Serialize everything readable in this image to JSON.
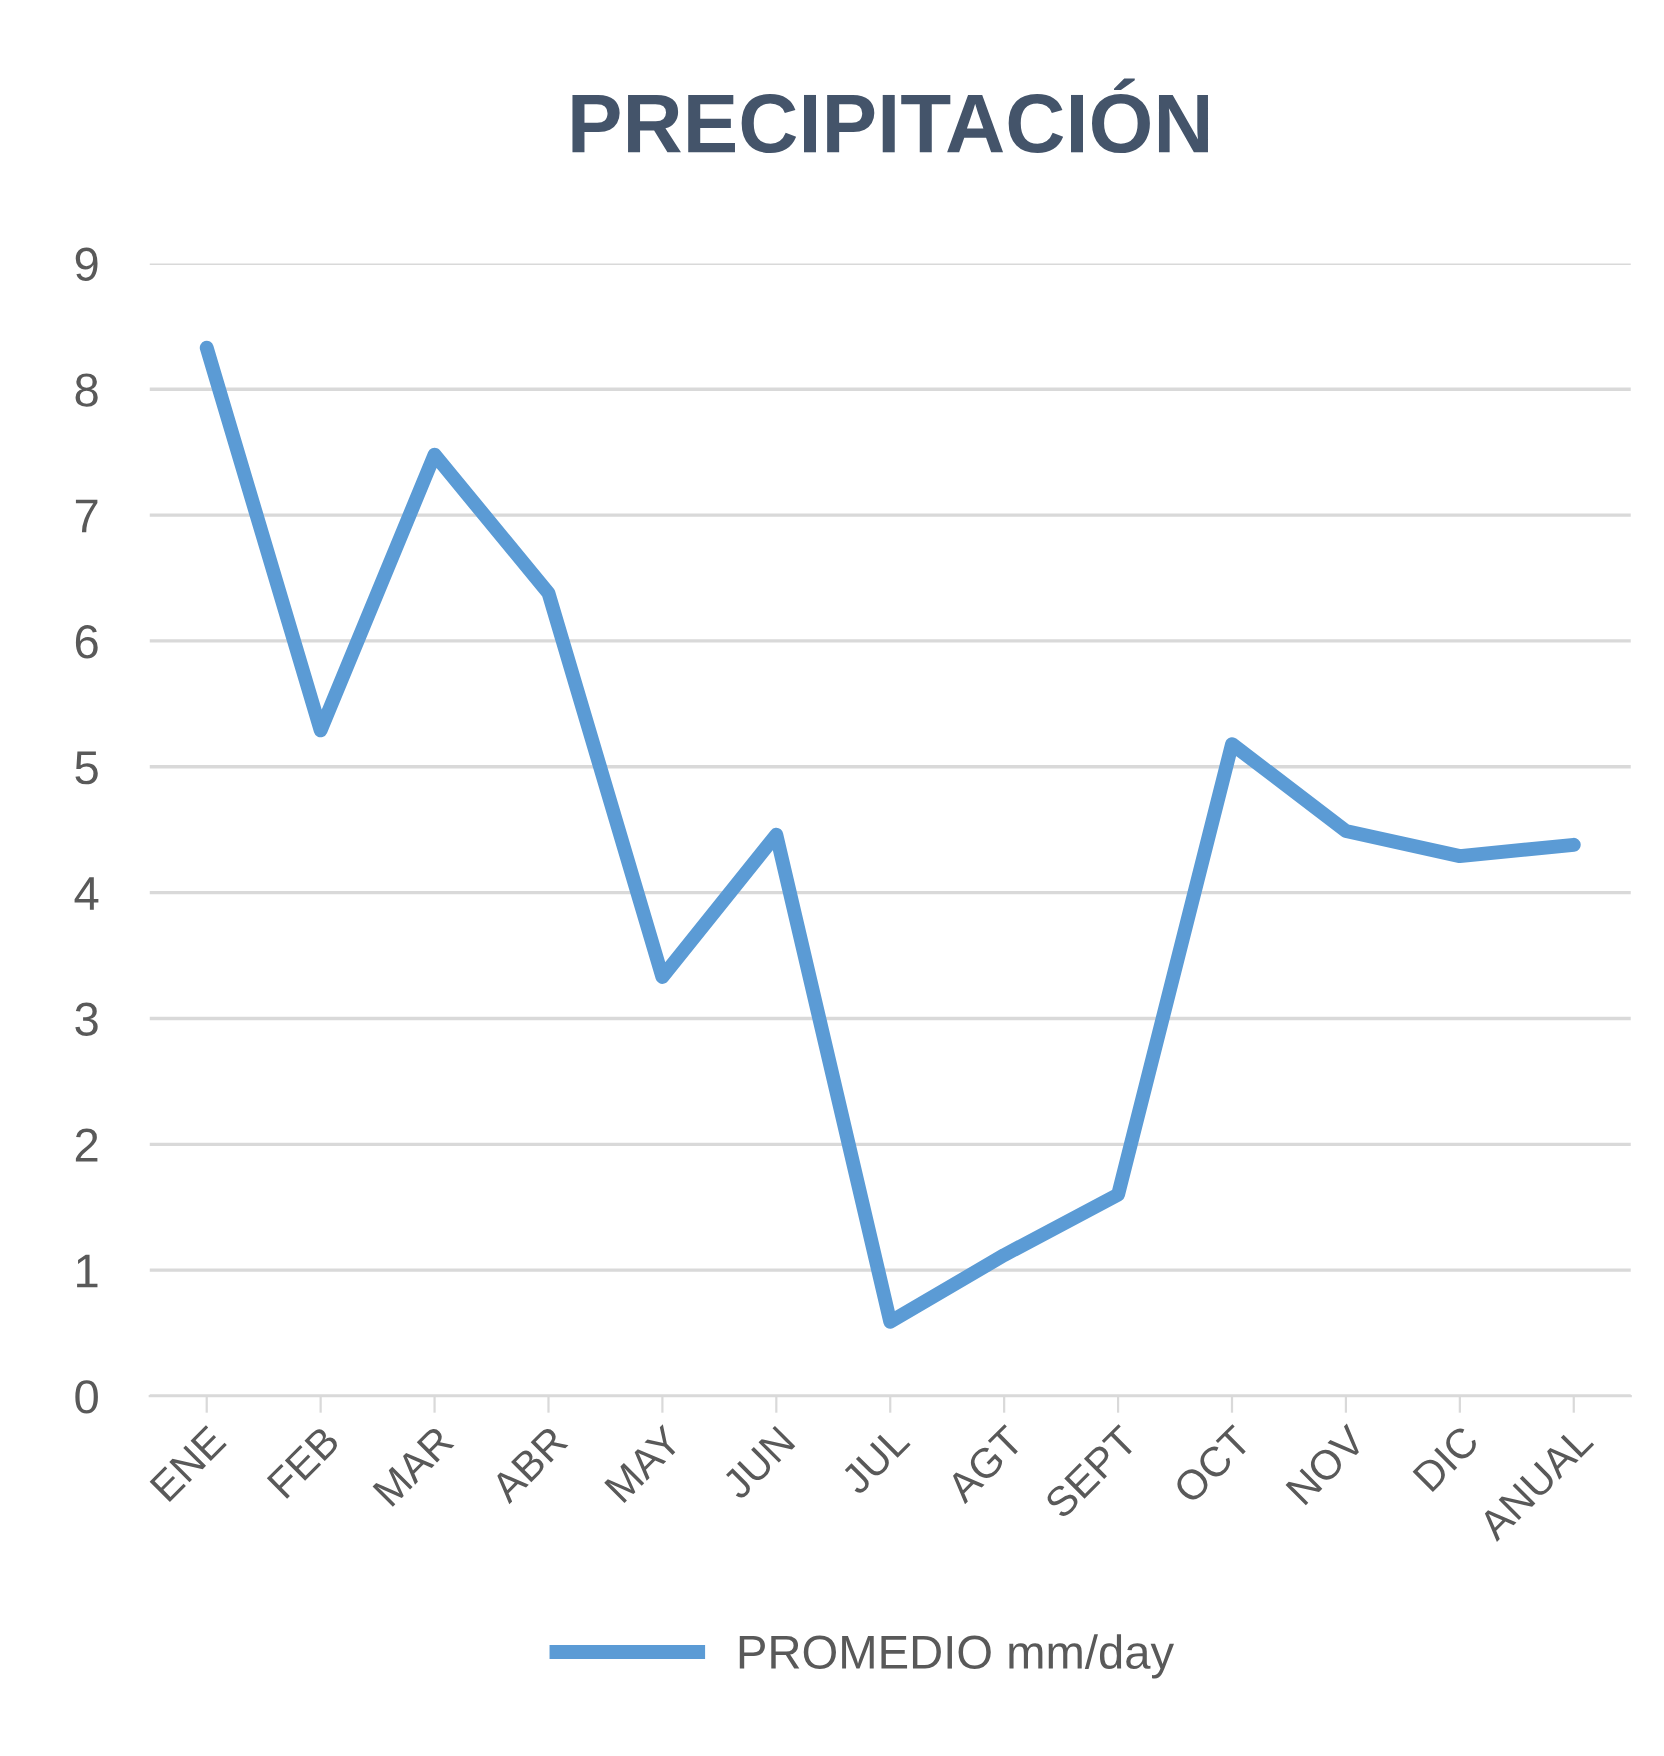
{
  "chart_data": {
    "type": "line",
    "title": "PRECIPITACIÓN",
    "categories": [
      "ENE",
      "FEB",
      "MAR",
      "ABR",
      "MAY",
      "JUN",
      "JUL",
      "AGT",
      "SEPT",
      "OCT",
      "NOV",
      "DIC",
      "ANUAL"
    ],
    "series": [
      {
        "name": "PROMEDIO mm/day",
        "color": "#5b9bd5",
        "values": [
          8.33,
          5.29,
          7.48,
          6.38,
          3.33,
          4.46,
          0.59,
          1.12,
          1.6,
          5.18,
          4.49,
          4.29,
          4.38
        ]
      }
    ],
    "ylim": [
      0,
      9
    ],
    "yticks": [
      0,
      1,
      2,
      3,
      4,
      5,
      6,
      7,
      8,
      9
    ],
    "grid": "y",
    "legend": "bottom",
    "marker": "none",
    "line_style": "solid"
  }
}
